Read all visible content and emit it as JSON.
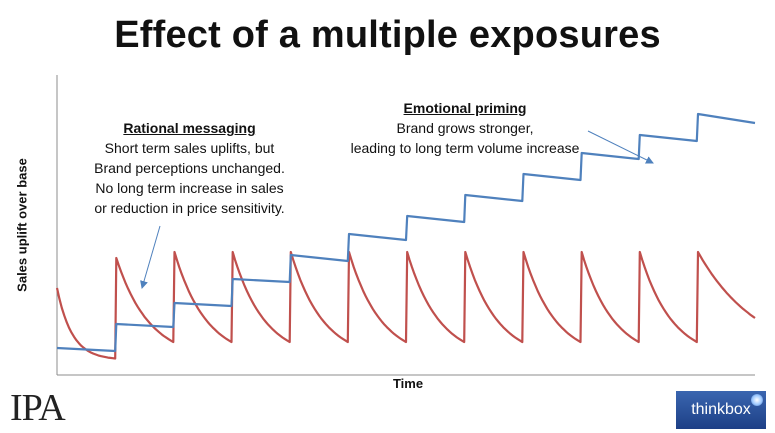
{
  "title": "Effect of a multiple exposures",
  "chart_data": {
    "type": "line",
    "title": "Effect of a multiple exposures",
    "xlabel": "Time",
    "ylabel": "Sales uplift over base",
    "xlim": [
      0,
      12
    ],
    "ylim": [
      0,
      100
    ],
    "grid": false,
    "axis_tick_labels": false,
    "colors": {
      "short_term": "#c0504d",
      "long_term": "#4f81bd"
    },
    "series": [
      {
        "id": "short_term",
        "color": "#c0504d",
        "shape": "repeated spike with exponential decay",
        "baseline": 5,
        "points": [
          [
            0.0,
            29
          ],
          [
            1.0,
            5
          ],
          [
            1.02,
            39
          ],
          [
            2.0,
            11
          ],
          [
            2.02,
            41
          ],
          [
            3.0,
            11
          ],
          [
            3.02,
            41
          ],
          [
            4.0,
            11
          ],
          [
            4.02,
            41
          ],
          [
            5.0,
            11
          ],
          [
            5.02,
            41
          ],
          [
            6.0,
            11
          ],
          [
            6.02,
            41
          ],
          [
            7.0,
            11
          ],
          [
            7.02,
            41
          ],
          [
            8.0,
            11
          ],
          [
            8.02,
            41
          ],
          [
            9.0,
            11
          ],
          [
            9.02,
            41
          ],
          [
            10.0,
            11
          ],
          [
            10.02,
            41
          ],
          [
            11.0,
            11
          ],
          [
            11.02,
            41
          ],
          [
            12.0,
            19
          ]
        ]
      },
      {
        "id": "long_term",
        "color": "#4f81bd",
        "shape": "staircase with a small decline after each exposure",
        "points": [
          [
            0.0,
            9
          ],
          [
            1.0,
            8
          ],
          [
            1.02,
            17
          ],
          [
            2.0,
            16
          ],
          [
            2.02,
            24
          ],
          [
            3.0,
            23
          ],
          [
            3.02,
            32
          ],
          [
            4.0,
            31
          ],
          [
            4.02,
            40
          ],
          [
            5.0,
            38
          ],
          [
            5.02,
            47
          ],
          [
            6.0,
            45
          ],
          [
            6.02,
            53
          ],
          [
            7.0,
            51
          ],
          [
            7.02,
            60
          ],
          [
            8.0,
            58
          ],
          [
            8.02,
            67
          ],
          [
            9.0,
            65
          ],
          [
            9.02,
            74
          ],
          [
            10.0,
            72
          ],
          [
            10.02,
            80
          ],
          [
            11.0,
            78
          ],
          [
            11.02,
            87
          ],
          [
            12.0,
            84
          ]
        ]
      }
    ],
    "annotations": [
      {
        "id": "rational",
        "heading": "Rational messaging",
        "lines": [
          "Short term sales uplifts, but",
          "Brand perceptions unchanged.",
          "No long term increase in sales",
          "or reduction in price sensitivity."
        ],
        "points_to": "short_term"
      },
      {
        "id": "emotional",
        "heading": "Emotional priming",
        "lines": [
          "Brand grows stronger,",
          "leading to long term volume increase"
        ],
        "points_to": "long_term"
      }
    ]
  },
  "logos": {
    "left": {
      "icon": "ipa-logo",
      "text": "IPA"
    },
    "right": {
      "icon": "thinkbox-logo",
      "text": "thinkbox"
    }
  }
}
